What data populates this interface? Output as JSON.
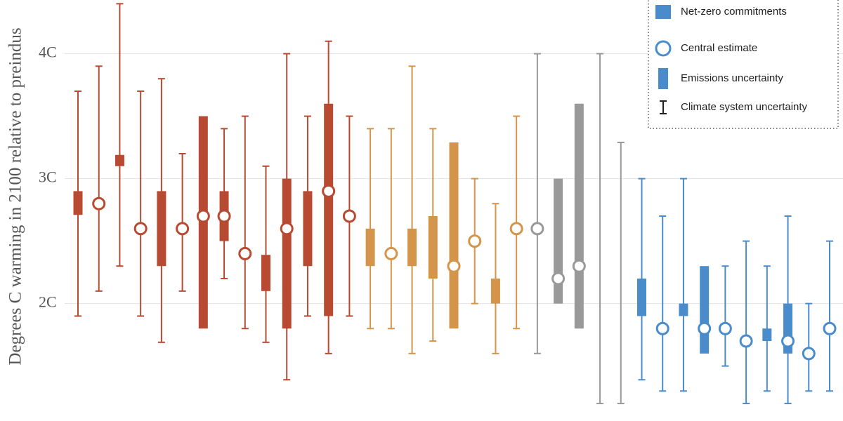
{
  "chart_data": {
    "type": "range",
    "y_label": "Degrees C warming in 2100 relative to preindus",
    "ylim": [
      1.06,
      4.43
    ],
    "yticks": [
      {
        "value": 2,
        "label": "2C"
      },
      {
        "value": 3,
        "label": "3C"
      },
      {
        "value": 4,
        "label": "4C"
      }
    ],
    "grid": true,
    "legend_items": [
      "Net-zero commitments",
      "Central estimate",
      "Emissions uncertainty",
      "Climate system uncertainty"
    ],
    "legend_color": "#4a8ccb",
    "items": [
      {
        "color": "#b84a32",
        "whisker": [
          1.9,
          3.7
        ],
        "box": [
          2.71,
          2.9
        ],
        "central": null
      },
      {
        "color": "#b84a32",
        "whisker": [
          2.1,
          3.9
        ],
        "box": null,
        "central": 2.8
      },
      {
        "color": "#b84a32",
        "whisker": [
          2.3,
          4.4
        ],
        "box": [
          3.1,
          3.19
        ],
        "central": null
      },
      {
        "color": "#b84a32",
        "whisker": [
          1.9,
          3.7
        ],
        "box": null,
        "central": 2.6
      },
      {
        "color": "#b84a32",
        "whisker": [
          1.69,
          3.8
        ],
        "box": [
          2.3,
          2.9
        ],
        "central": null
      },
      {
        "color": "#b84a32",
        "whisker": [
          2.1,
          3.2
        ],
        "box": null,
        "central": 2.6
      },
      {
        "color": "#b84a32",
        "whisker": null,
        "box": [
          1.8,
          3.5
        ],
        "central": 2.7
      },
      {
        "color": "#b84a32",
        "whisker": [
          2.2,
          3.4
        ],
        "box": [
          2.5,
          2.9
        ],
        "central": 2.7
      },
      {
        "color": "#b84a32",
        "whisker": [
          1.8,
          3.5
        ],
        "box": null,
        "central": 2.4
      },
      {
        "color": "#b84a32",
        "whisker": [
          1.69,
          3.1
        ],
        "box": [
          2.1,
          2.39
        ],
        "central": null
      },
      {
        "color": "#b84a32",
        "whisker": [
          1.39,
          4.0
        ],
        "box": [
          1.8,
          3.0
        ],
        "central": 2.6
      },
      {
        "color": "#b84a32",
        "whisker": [
          1.9,
          3.5
        ],
        "box": [
          2.3,
          2.9
        ],
        "central": null
      },
      {
        "color": "#b84a32",
        "whisker": [
          1.6,
          4.1
        ],
        "box": [
          1.9,
          3.6
        ],
        "central": 2.9
      },
      {
        "color": "#b84a32",
        "whisker": [
          1.9,
          3.5
        ],
        "box": null,
        "central": 2.7
      },
      {
        "color": "#d4954a",
        "whisker": [
          1.8,
          3.4
        ],
        "box": [
          2.3,
          2.6
        ],
        "central": null
      },
      {
        "color": "#d4954a",
        "whisker": [
          1.8,
          3.4
        ],
        "box": null,
        "central": 2.4
      },
      {
        "color": "#d4954a",
        "whisker": [
          1.6,
          3.9
        ],
        "box": [
          2.3,
          2.6
        ],
        "central": null
      },
      {
        "color": "#d4954a",
        "whisker": [
          1.7,
          3.4
        ],
        "box": [
          2.2,
          2.7
        ],
        "central": null
      },
      {
        "color": "#d4954a",
        "whisker": null,
        "box": [
          1.8,
          3.29
        ],
        "central": 2.3
      },
      {
        "color": "#d4954a",
        "whisker": [
          2.0,
          3.0
        ],
        "box": null,
        "central": 2.5
      },
      {
        "color": "#d4954a",
        "whisker": [
          1.6,
          2.8
        ],
        "box": [
          2.0,
          2.2
        ],
        "central": null
      },
      {
        "color": "#d4954a",
        "whisker": [
          1.8,
          3.5
        ],
        "box": null,
        "central": 2.6
      },
      {
        "color": "#999999",
        "whisker": [
          1.6,
          4.0
        ],
        "box": null,
        "central": 2.6
      },
      {
        "color": "#999999",
        "whisker": null,
        "box": [
          2.0,
          3.0
        ],
        "central": 2.2
      },
      {
        "color": "#999999",
        "whisker": null,
        "box": [
          1.8,
          3.6
        ],
        "central": 2.3
      },
      {
        "color": "#999999",
        "whisker": [
          1.2,
          4.0
        ],
        "box": null,
        "central": null
      },
      {
        "color": "#999999",
        "whisker": [
          1.2,
          3.29
        ],
        "box": null,
        "central": null
      },
      {
        "color": "#4a8ccb",
        "whisker": [
          1.39,
          3.0
        ],
        "box": [
          1.9,
          2.2
        ],
        "central": null
      },
      {
        "color": "#4a8ccb",
        "whisker": [
          1.3,
          2.7
        ],
        "box": null,
        "central": 1.8
      },
      {
        "color": "#4a8ccb",
        "whisker": [
          1.3,
          3.0
        ],
        "box": [
          1.9,
          2.0
        ],
        "central": null
      },
      {
        "color": "#4a8ccb",
        "whisker": null,
        "box": [
          1.6,
          2.3
        ],
        "central": 1.8
      },
      {
        "color": "#4a8ccb",
        "whisker": [
          1.5,
          2.3
        ],
        "box": null,
        "central": 1.8
      },
      {
        "color": "#4a8ccb",
        "whisker": [
          1.2,
          2.5
        ],
        "box": null,
        "central": 1.7
      },
      {
        "color": "#4a8ccb",
        "whisker": [
          1.3,
          2.3
        ],
        "box": [
          1.7,
          1.8
        ],
        "central": null
      },
      {
        "color": "#4a8ccb",
        "whisker": [
          1.2,
          2.7
        ],
        "box": [
          1.6,
          2.0
        ],
        "central": 1.7
      },
      {
        "color": "#4a8ccb",
        "whisker": [
          1.3,
          2.0
        ],
        "box": null,
        "central": 1.6
      },
      {
        "color": "#4a8ccb",
        "whisker": [
          1.3,
          2.5
        ],
        "box": null,
        "central": 1.8
      }
    ]
  }
}
